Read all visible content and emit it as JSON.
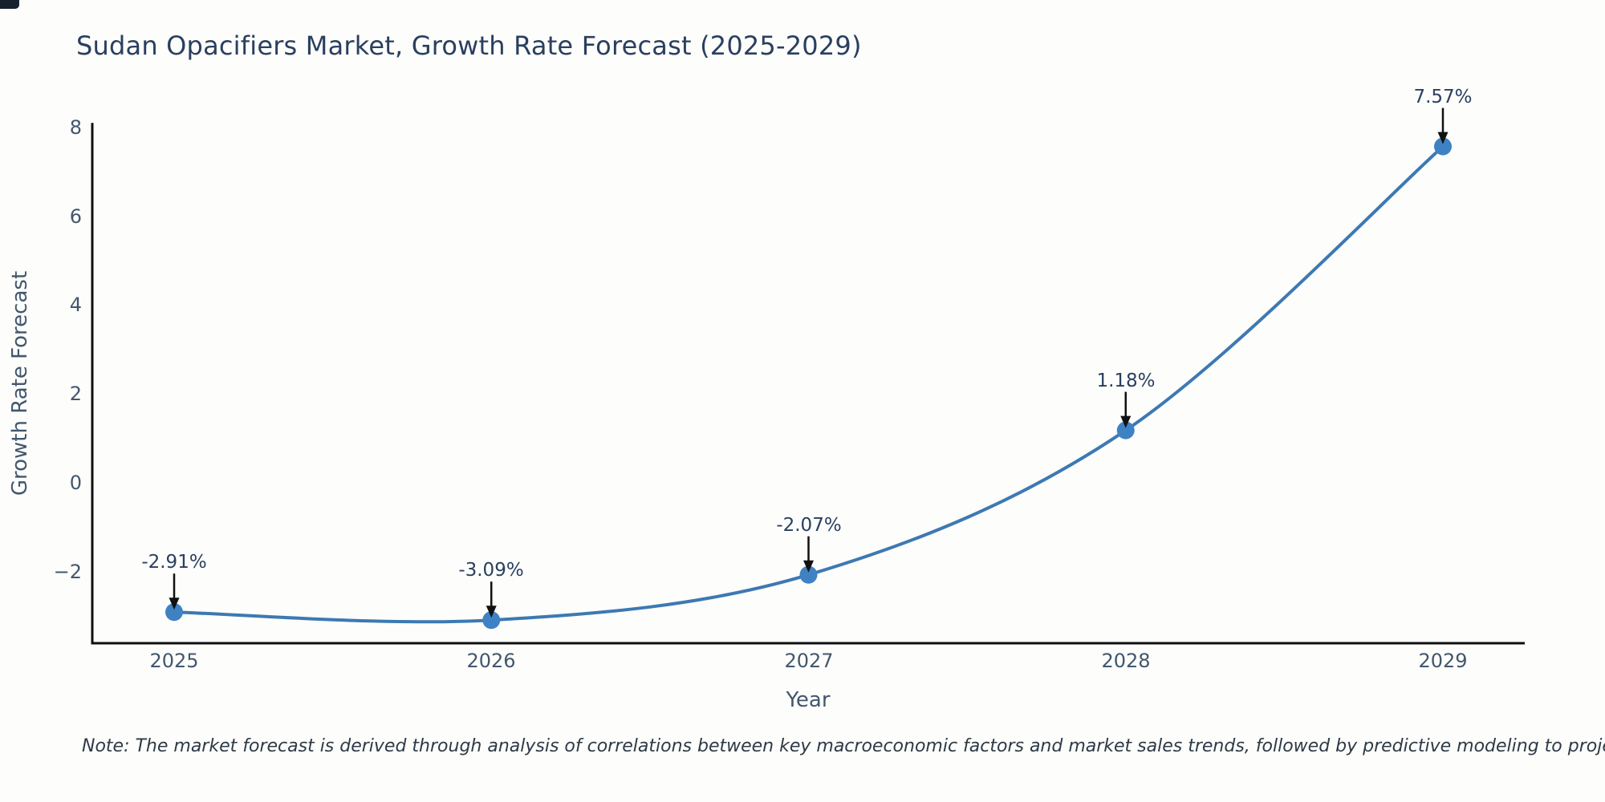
{
  "chart_data": {
    "type": "line",
    "title": "Sudan Opacifiers Market, Growth Rate Forecast (2025-2029)",
    "xlabel": "Year",
    "ylabel": "Growth Rate Forecast",
    "x": [
      2025,
      2026,
      2027,
      2028,
      2029
    ],
    "xtick_labels": [
      "2025",
      "2026",
      "2027",
      "2028",
      "2029"
    ],
    "series": [
      {
        "name": "Growth Rate Forecast",
        "values": [
          -2.91,
          -3.09,
          -2.07,
          1.18,
          7.57
        ]
      }
    ],
    "point_labels": [
      "-2.91%",
      "-3.09%",
      "-2.07%",
      "1.18%",
      "7.57%"
    ],
    "yticks": [
      8,
      6,
      4,
      2,
      0,
      -2
    ],
    "ytick_labels": [
      "8",
      "6",
      "4",
      "2",
      "0",
      "−2"
    ],
    "ylim": [
      -3.61,
      8.1
    ],
    "grid": false,
    "legend_position": "none",
    "line_shape": "spline",
    "line_color": "#3d79b3",
    "marker_color": "#3e82c4",
    "axis_color": "#0f0f0f",
    "annotation_arrow_color": "#111111",
    "annotation_text_color": "#2a3f5f"
  },
  "note": "Note: The market forecast is derived through analysis of correlations between key macroeconomic factors and market sales trends, followed by predictive modeling to project future sales"
}
